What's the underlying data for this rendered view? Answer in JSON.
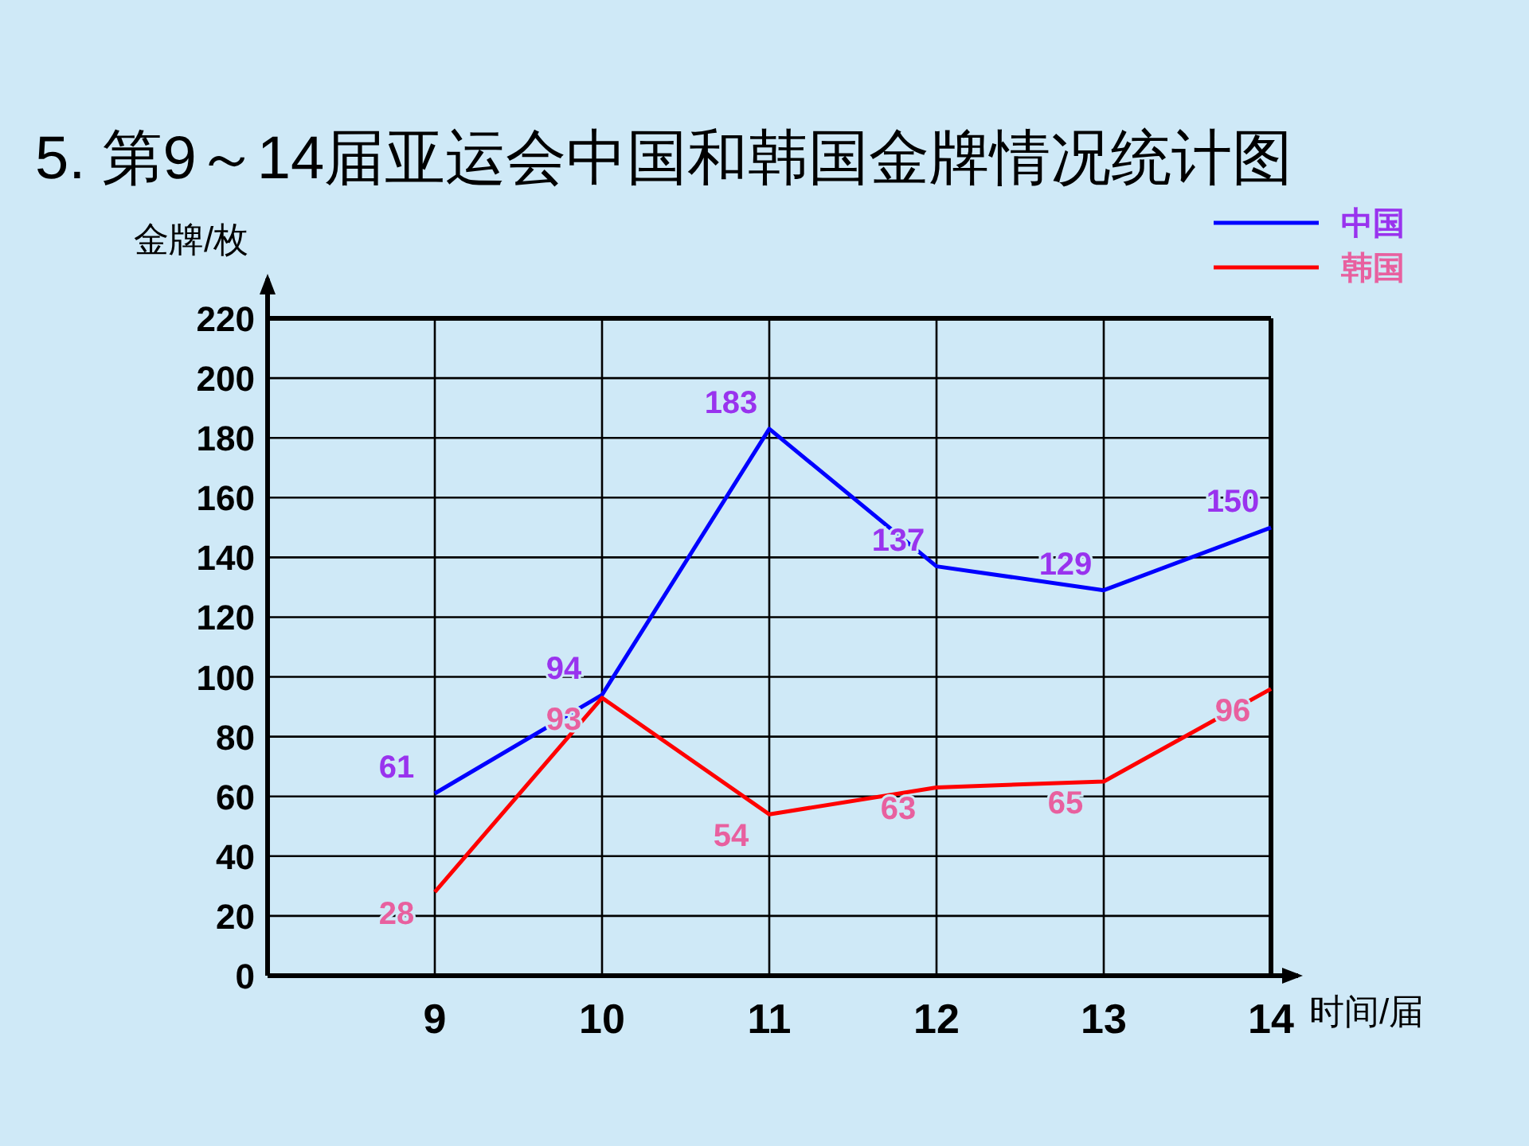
{
  "chart_data": {
    "type": "line",
    "title": "5. 第9～14届亚运会中国和韩国金牌情况统计图",
    "ylabel": "金牌/枚",
    "xlabel": "时间/届",
    "x": [
      9,
      10,
      11,
      12,
      13,
      14
    ],
    "xlim": [
      8,
      14
    ],
    "xticks": [
      9,
      10,
      11,
      12,
      13,
      14
    ],
    "ylim": [
      0,
      220
    ],
    "yticks": [
      0,
      20,
      40,
      60,
      80,
      100,
      120,
      140,
      160,
      180,
      200,
      220
    ],
    "grid": true,
    "legend": "top right",
    "data_labels": true,
    "marker": "none",
    "line_style": "solid",
    "series": [
      {
        "name": "中国",
        "color": "#0000ff",
        "values": [
          61,
          94,
          183,
          137,
          129,
          150
        ]
      },
      {
        "name": "韩国",
        "color": "#ff0000",
        "values": [
          28,
          93,
          54,
          63,
          65,
          96
        ]
      }
    ]
  }
}
